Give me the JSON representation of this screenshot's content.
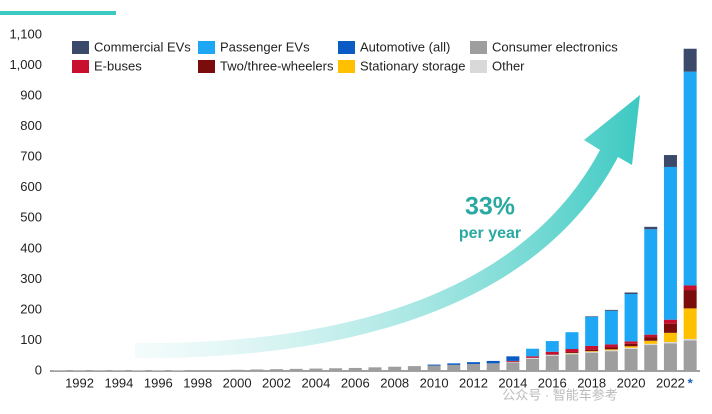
{
  "chart_data": {
    "type": "stacked_bar",
    "categories": [
      null,
      "1992",
      null,
      "1994",
      null,
      "1996",
      null,
      "1998",
      null,
      "2000",
      null,
      "2002",
      null,
      "2004",
      null,
      "2006",
      null,
      "2008",
      null,
      "2010",
      null,
      "2012",
      null,
      "2014",
      null,
      "2016",
      null,
      "2018",
      null,
      "2020",
      null,
      "2022",
      "*"
    ],
    "series": [
      {
        "name": "Consumer electronics",
        "color": "#9e9e9e",
        "values": [
          1,
          1,
          1,
          1,
          2,
          2,
          2,
          3,
          3,
          4,
          5,
          6,
          7,
          8,
          9,
          10,
          12,
          14,
          16,
          18,
          20,
          23,
          25,
          28,
          40,
          50,
          55,
          60,
          65,
          72,
          85,
          90,
          100
        ]
      },
      {
        "name": "Other",
        "color": "#d9d9d9",
        "values": [
          0,
          0,
          0,
          0,
          0,
          0,
          0,
          0,
          0,
          0,
          0,
          0,
          0,
          0,
          0,
          0,
          0,
          0,
          0,
          0,
          0,
          0,
          0,
          2,
          3,
          3,
          3,
          3,
          3,
          4,
          4,
          5,
          5
        ]
      },
      {
        "name": "Stationary storage",
        "color": "#ffc000",
        "values": [
          0,
          0,
          0,
          0,
          0,
          0,
          0,
          0,
          0,
          0,
          0,
          0,
          0,
          0,
          0,
          0,
          0,
          0,
          0,
          0,
          0,
          0,
          0,
          0,
          0,
          0,
          1,
          2,
          3,
          5,
          10,
          30,
          100
        ]
      },
      {
        "name": "Two/three-wheelers",
        "color": "#7b0c0c",
        "values": [
          0,
          0,
          0,
          0,
          0,
          0,
          0,
          0,
          0,
          0,
          0,
          0,
          0,
          0,
          0,
          0,
          0,
          0,
          0,
          0,
          0,
          0,
          0,
          0,
          0,
          2,
          3,
          5,
          6,
          8,
          12,
          30,
          60
        ]
      },
      {
        "name": "E-buses",
        "color": "#c8102e",
        "values": [
          0,
          0,
          0,
          0,
          0,
          0,
          0,
          0,
          0,
          0,
          0,
          0,
          0,
          0,
          0,
          0,
          0,
          0,
          0,
          0,
          0,
          0,
          0,
          3,
          5,
          8,
          10,
          12,
          10,
          8,
          8,
          13,
          15
        ]
      },
      {
        "name": "Automotive (all)",
        "color": "#0a5bc4",
        "values": [
          0,
          0,
          0,
          0,
          0,
          0,
          0,
          0,
          0,
          0,
          0,
          0,
          0,
          0,
          0,
          0,
          0,
          0,
          0,
          3,
          5,
          6,
          8,
          15,
          0,
          0,
          0,
          0,
          0,
          0,
          0,
          0,
          0
        ]
      },
      {
        "name": "Passenger EVs",
        "color": "#1ea7f5",
        "values": [
          0,
          0,
          0,
          0,
          0,
          0,
          0,
          0,
          0,
          0,
          0,
          0,
          0,
          0,
          0,
          0,
          0,
          0,
          0,
          0,
          0,
          0,
          0,
          0,
          25,
          35,
          55,
          95,
          110,
          155,
          345,
          500,
          700
        ]
      },
      {
        "name": "Commercial EVs",
        "color": "#3b4a6b",
        "values": [
          0,
          0,
          0,
          0,
          0,
          0,
          0,
          0,
          0,
          0,
          0,
          0,
          0,
          0,
          0,
          0,
          0,
          0,
          0,
          0,
          0,
          0,
          0,
          0,
          0,
          0,
          0,
          2,
          3,
          5,
          8,
          39,
          75
        ]
      }
    ],
    "legend_order": [
      7,
      6,
      5,
      2,
      4,
      3,
      2,
      1,
      0
    ],
    "ylim": [
      0,
      1100
    ],
    "yticks": [
      0,
      100,
      200,
      300,
      400,
      500,
      600,
      700,
      800,
      900,
      {
        "value": 1000,
        "label": "1,000"
      },
      {
        "value": 1100,
        "label": "1,100"
      }
    ],
    "annotations": [
      "33%",
      "per year",
      "公众号 · 智能车参考"
    ],
    "grid": false
  }
}
